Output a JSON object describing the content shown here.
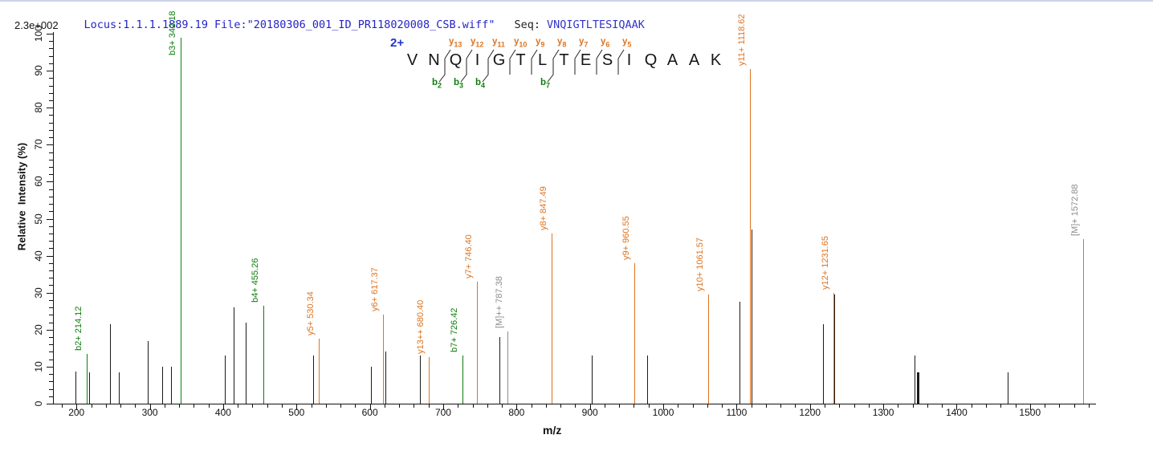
{
  "header": {
    "locus": "Locus:1.1.1.1889.19",
    "file": "File:\"20180306_001_ID_PR118020008_CSB.wiff\"",
    "seq_label": "Seq:",
    "sequence": "VNQIGTLTESIQAAK"
  },
  "scale_label": "2.3e+002",
  "axes": {
    "y_label": "Relative  Intensity (%)",
    "x_label": "m/z"
  },
  "sequence_panel": {
    "charge": "2+",
    "residues": [
      "V",
      "N",
      "Q",
      "I",
      "G",
      "T",
      "L",
      "T",
      "E",
      "S",
      "I",
      "Q",
      "A",
      "A",
      "K"
    ],
    "cleavages": [
      {
        "after": 2,
        "y": "y13",
        "b": "b2"
      },
      {
        "after": 3,
        "y": "y12",
        "b": "b3"
      },
      {
        "after": 4,
        "y": "y11",
        "b": "b4"
      },
      {
        "after": 5,
        "y": "y10",
        "b": null
      },
      {
        "after": 6,
        "y": "y9",
        "b": null
      },
      {
        "after": 7,
        "y": "y8",
        "b": "b7"
      },
      {
        "after": 8,
        "y": "y7",
        "b": null
      },
      {
        "after": 9,
        "y": "y6",
        "b": null
      },
      {
        "after": 10,
        "y": "y5",
        "b": null
      }
    ]
  },
  "colors": {
    "y_ion": "#dd7420",
    "b_ion": "#0e7d0e",
    "precursor": "#8c8c8c",
    "peak": "#1a1a1a",
    "header_blue": "#2424c8",
    "charge_blue": "#2036c8"
  },
  "chart_data": {
    "type": "bar",
    "subtype": "ms2-fragmentation-spectrum",
    "xlabel": "m/z",
    "ylabel": "Relative  Intensity (%)",
    "absolute_max_intensity": "2.3e+002",
    "x_domain": [
      168,
      1590
    ],
    "x_major_ticks": [
      200,
      300,
      400,
      500,
      600,
      700,
      800,
      900,
      1000,
      1100,
      1200,
      1300,
      1400,
      1500
    ],
    "x_minor_step": 20,
    "y_domain": [
      0,
      100
    ],
    "y_major_step": 10,
    "y_minor_step": 2,
    "peaks": [
      {
        "mz": 199,
        "intensity": 8.7,
        "type": "unassigned",
        "label": null
      },
      {
        "mz": 214.12,
        "intensity": 13.5,
        "type": "b",
        "label": "b2+ 214.12"
      },
      {
        "mz": 217,
        "intensity": 8.5,
        "type": "unassigned",
        "label": null
      },
      {
        "mz": 246,
        "intensity": 21.5,
        "type": "unassigned",
        "label": null
      },
      {
        "mz": 258,
        "intensity": 8.5,
        "type": "unassigned",
        "label": null
      },
      {
        "mz": 297,
        "intensity": 17,
        "type": "unassigned",
        "label": null
      },
      {
        "mz": 317,
        "intensity": 10,
        "type": "unassigned",
        "label": null
      },
      {
        "mz": 329,
        "intensity": 10,
        "type": "unassigned",
        "label": null
      },
      {
        "mz": 342.18,
        "intensity": 99,
        "type": "b",
        "label": "b3+ 342.18"
      },
      {
        "mz": 402,
        "intensity": 13,
        "type": "unassigned",
        "label": null
      },
      {
        "mz": 414,
        "intensity": 26,
        "type": "unassigned",
        "label": null
      },
      {
        "mz": 431,
        "intensity": 22,
        "type": "unassigned",
        "label": null
      },
      {
        "mz": 455.26,
        "intensity": 26.5,
        "type": "b",
        "label": "b4+ 455.26"
      },
      {
        "mz": 523,
        "intensity": 13,
        "type": "unassigned",
        "label": null
      },
      {
        "mz": 530.34,
        "intensity": 17.5,
        "type": "y",
        "label": "y5+ 530.34"
      },
      {
        "mz": 601,
        "intensity": 10,
        "type": "unassigned",
        "label": null
      },
      {
        "mz": 617.37,
        "intensity": 24,
        "type": "y",
        "label": "y6+ 617.37"
      },
      {
        "mz": 621,
        "intensity": 14,
        "type": "unassigned",
        "label": null
      },
      {
        "mz": 668,
        "intensity": 13,
        "type": "unassigned",
        "label": null
      },
      {
        "mz": 680.4,
        "intensity": 12.5,
        "type": "y",
        "label": "y13++ 680.40"
      },
      {
        "mz": 726.42,
        "intensity": 13,
        "type": "b",
        "label": "b7+ 726.42"
      },
      {
        "mz": 746.4,
        "intensity": 33,
        "type": "y",
        "label": "y7+ 746.40"
      },
      {
        "mz": 777,
        "intensity": 18,
        "type": "unassigned",
        "label": null
      },
      {
        "mz": 787.38,
        "intensity": 19.5,
        "type": "M",
        "label": "[M]++ 787.38"
      },
      {
        "mz": 847.49,
        "intensity": 46,
        "type": "y",
        "label": "y8+ 847.49"
      },
      {
        "mz": 902,
        "intensity": 13,
        "type": "unassigned",
        "label": null
      },
      {
        "mz": 960.55,
        "intensity": 38,
        "type": "y",
        "label": "y9+ 960.55"
      },
      {
        "mz": 978,
        "intensity": 13,
        "type": "unassigned",
        "label": null
      },
      {
        "mz": 1061.57,
        "intensity": 29.5,
        "type": "y",
        "label": "y10+ 1061.57"
      },
      {
        "mz": 1104,
        "intensity": 27.5,
        "type": "unassigned",
        "label": null
      },
      {
        "mz": 1118.62,
        "intensity": 90.5,
        "type": "y",
        "label": "y11+ 1118.62"
      },
      {
        "mz": 1120,
        "intensity": 47,
        "type": "unassigned",
        "label": null
      },
      {
        "mz": 1218,
        "intensity": 21.5,
        "type": "unassigned",
        "label": null
      },
      {
        "mz": 1231.65,
        "intensity": 30,
        "type": "y",
        "label": "y12+ 1231.65"
      },
      {
        "mz": 1233,
        "intensity": 29.5,
        "type": "unassigned",
        "label": null
      },
      {
        "mz": 1343,
        "intensity": 13,
        "type": "unassigned",
        "label": null
      },
      {
        "mz": 1346,
        "intensity": 8.5,
        "type": "unassigned",
        "label": null,
        "width": 3
      },
      {
        "mz": 1470,
        "intensity": 8.5,
        "type": "unassigned",
        "label": null
      },
      {
        "mz": 1572.88,
        "intensity": 44.5,
        "type": "M",
        "label": "[M]+ 1572.88"
      }
    ]
  }
}
